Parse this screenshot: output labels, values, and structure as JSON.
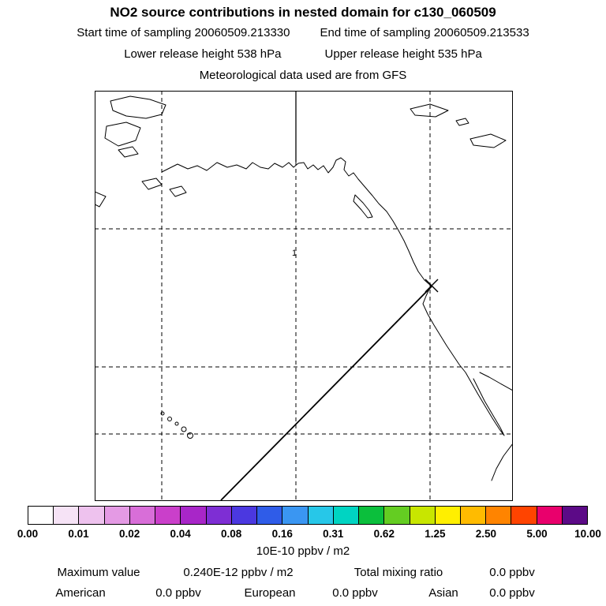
{
  "header": {
    "title": "NO2 source contributions in nested domain for c130_060509",
    "start_time": "Start time of sampling 20060509.213330",
    "end_time": "End time of sampling 20060509.213533",
    "lower_release": "Lower release height  538 hPa",
    "upper_release": "Upper release height  535 hPa",
    "met_source": "Meteorological data used are from GFS"
  },
  "map": {
    "cell_label": "1"
  },
  "colorbar": {
    "colors": [
      "#ffffff",
      "#f6e3f6",
      "#eec2ee",
      "#e49ae4",
      "#d86ed8",
      "#ca3fca",
      "#a826c8",
      "#7e2ed4",
      "#4b38e0",
      "#2f5ce8",
      "#3a96f2",
      "#27c7e8",
      "#00d4c2",
      "#0bbf3c",
      "#64cd22",
      "#c8e600",
      "#ffef00",
      "#ffbb00",
      "#ff8400",
      "#ff4400",
      "#e9006c",
      "#5c0a87"
    ],
    "ticks": [
      "0.00",
      "0.01",
      "0.02",
      "0.04",
      "0.08",
      "0.16",
      "0.31",
      "0.62",
      "1.25",
      "2.50",
      "5.00",
      "10.00"
    ],
    "units": "10E-10 ppbv / m2"
  },
  "stats": {
    "max_label": "Maximum value",
    "max_value": "0.240E-12 ppbv / m2",
    "total_label": "Total mixing ratio",
    "total_value": "0.0 ppbv",
    "regions": [
      {
        "name": "American",
        "value": "0.0 ppbv"
      },
      {
        "name": "European",
        "value": "0.0 ppbv"
      },
      {
        "name": "Asian",
        "value": "0.0 ppbv"
      }
    ]
  },
  "chart_data": {
    "type": "heatmap",
    "title": "NO2 source contributions in nested domain for c130_060509",
    "description": "Geographic map of the northeast Pacific / western North America with dashed lat-lon grid, a straight trajectory line from lower left to a receptor X marker on the California coast, grid cell label 1, and a logarithmic color scale (all contribution values effectively zero).",
    "colorbar_ticks": [
      0.0,
      0.01,
      0.02,
      0.04,
      0.08,
      0.16,
      0.31,
      0.62,
      1.25,
      2.5,
      5.0,
      10.0
    ],
    "colorbar_units": "10E-10 ppbv / m2",
    "start_time": "20060509.213330",
    "end_time": "20060509.213533",
    "lower_release_hPa": 538,
    "upper_release_hPa": 535,
    "met_data": "GFS",
    "maximum_value": "0.240E-12 ppbv / m2",
    "total_mixing_ratio_ppbv": 0.0,
    "contributions_ppbv": {
      "American": 0.0,
      "European": 0.0,
      "Asian": 0.0
    }
  }
}
